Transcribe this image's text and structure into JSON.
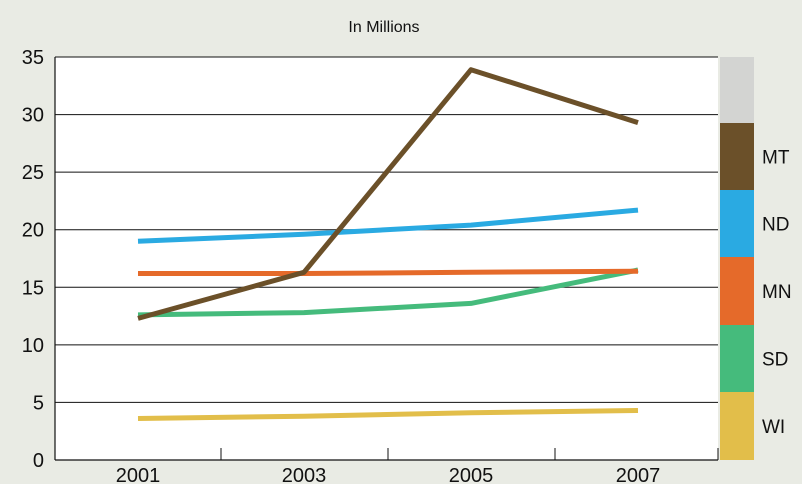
{
  "chart_data": {
    "type": "line",
    "title": "In Millions",
    "xlabel": "",
    "ylabel": "",
    "x": [
      "2001",
      "2003",
      "2005",
      "2007"
    ],
    "ylim": [
      0,
      35
    ],
    "yticks": [
      "0",
      "5",
      "10",
      "15",
      "20",
      "25",
      "30",
      "35"
    ],
    "grid": "horizontal",
    "legend": "right",
    "series": [
      {
        "name": "MT",
        "color": "#6b5029",
        "values": [
          12.3,
          16.3,
          33.9,
          29.3
        ]
      },
      {
        "name": "ND",
        "color": "#2aaae2",
        "values": [
          19.0,
          19.6,
          20.4,
          21.7
        ]
      },
      {
        "name": "MN",
        "color": "#e56a2a",
        "values": [
          16.2,
          16.2,
          16.3,
          16.4
        ]
      },
      {
        "name": "SD",
        "color": "#45bb7c",
        "values": [
          12.6,
          12.8,
          13.6,
          16.5
        ]
      },
      {
        "name": "WI",
        "color": "#e2be4a",
        "values": [
          3.6,
          3.8,
          4.1,
          4.3
        ]
      }
    ],
    "legend_blank_color": "#d3d4d2"
  }
}
